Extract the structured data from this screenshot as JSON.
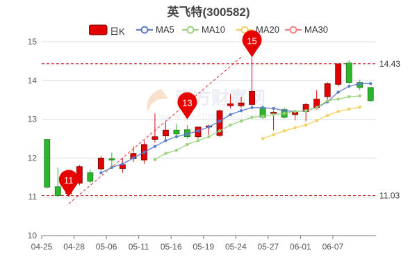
{
  "chart_data": {
    "type": "candlestick",
    "title": "英飞特(300582)",
    "legend": [
      {
        "name": "日K",
        "color": "#e00000"
      },
      {
        "name": "MA5",
        "color": "#5b7cc8"
      },
      {
        "name": "MA10",
        "color": "#9bd27c"
      },
      {
        "name": "MA20",
        "color": "#f5cf5c"
      },
      {
        "name": "MA30",
        "color": "#f08080"
      }
    ],
    "colors": {
      "up": "#e00000",
      "down": "#2db52d",
      "grid": "#d9dfe8",
      "axis": "#777777"
    },
    "yaxis": {
      "min": 10,
      "max": 15,
      "ticks": [
        10,
        11,
        12,
        13,
        14,
        15
      ]
    },
    "xaxis": {
      "tick_labels": [
        "04-25",
        "04-28",
        "05-06",
        "05-11",
        "05-16",
        "05-19",
        "05-24",
        "05-27",
        "06-01",
        "06-07"
      ],
      "tick_index": [
        0,
        3,
        6,
        9,
        12,
        15,
        18,
        21,
        24,
        27
      ]
    },
    "candles": [
      {
        "o": 12.48,
        "c": 11.25,
        "h": 12.48,
        "l": 11.22
      },
      {
        "o": 11.26,
        "c": 11.03,
        "h": 11.76,
        "l": 11.0
      },
      {
        "o": 11.08,
        "c": 11.36,
        "h": 11.42,
        "l": 11.03
      },
      {
        "o": 11.35,
        "c": 11.78,
        "h": 11.82,
        "l": 11.3
      },
      {
        "o": 11.62,
        "c": 11.4,
        "h": 11.7,
        "l": 11.35
      },
      {
        "o": 11.72,
        "c": 12.0,
        "h": 12.05,
        "l": 11.68
      },
      {
        "o": 11.98,
        "c": 11.95,
        "h": 12.14,
        "l": 11.72
      },
      {
        "o": 11.73,
        "c": 11.83,
        "h": 12.0,
        "l": 11.62
      },
      {
        "o": 11.98,
        "c": 12.12,
        "h": 12.3,
        "l": 11.9
      },
      {
        "o": 11.95,
        "c": 12.35,
        "h": 12.45,
        "l": 11.85
      },
      {
        "o": 12.48,
        "c": 12.55,
        "h": 13.15,
        "l": 12.4
      },
      {
        "o": 12.57,
        "c": 12.72,
        "h": 12.92,
        "l": 12.48
      },
      {
        "o": 12.72,
        "c": 12.62,
        "h": 12.88,
        "l": 12.55
      },
      {
        "o": 12.73,
        "c": 12.55,
        "h": 12.85,
        "l": 12.5
      },
      {
        "o": 12.55,
        "c": 12.8,
        "h": 12.8,
        "l": 12.5
      },
      {
        "o": 12.8,
        "c": 12.83,
        "h": 12.86,
        "l": 12.6
      },
      {
        "o": 12.58,
        "c": 13.22,
        "h": 13.25,
        "l": 12.55
      },
      {
        "o": 13.35,
        "c": 13.4,
        "h": 13.65,
        "l": 13.28
      },
      {
        "o": 13.35,
        "c": 13.42,
        "h": 13.58,
        "l": 13.3
      },
      {
        "o": 13.38,
        "c": 13.72,
        "h": 14.6,
        "l": 13.35
      },
      {
        "o": 13.3,
        "c": 13.05,
        "h": 13.35,
        "l": 13.0
      },
      {
        "o": 13.15,
        "c": 13.18,
        "h": 13.22,
        "l": 12.72
      },
      {
        "o": 13.25,
        "c": 13.05,
        "h": 13.3,
        "l": 13.02
      },
      {
        "o": 13.12,
        "c": 13.18,
        "h": 13.22,
        "l": 12.98
      },
      {
        "o": 13.2,
        "c": 13.38,
        "h": 13.42,
        "l": 12.95
      },
      {
        "o": 13.3,
        "c": 13.52,
        "h": 13.75,
        "l": 13.25
      },
      {
        "o": 13.58,
        "c": 13.92,
        "h": 13.95,
        "l": 13.5
      },
      {
        "o": 13.9,
        "c": 14.43,
        "h": 14.43,
        "l": 13.85
      },
      {
        "o": 14.45,
        "c": 13.95,
        "h": 14.52,
        "l": 13.9
      },
      {
        "o": 13.95,
        "c": 13.82,
        "h": 14.02,
        "l": 13.75
      },
      {
        "o": 13.82,
        "c": 13.48,
        "h": 13.82,
        "l": 13.45
      }
    ],
    "ma": [
      {
        "name": "MA5",
        "color": "#5b7cc8",
        "start": 5,
        "values": [
          11.62,
          11.76,
          11.85,
          12.0,
          12.15,
          12.3,
          12.45,
          12.55,
          12.62,
          12.7,
          12.8,
          12.95,
          13.12,
          13.22,
          13.3,
          13.3,
          13.28,
          13.22,
          13.2,
          13.22,
          13.3,
          13.45,
          13.7,
          13.85,
          13.92,
          13.92
        ]
      },
      {
        "name": "MA10",
        "color": "#9bd27c",
        "start": 10,
        "values": [
          11.96,
          12.12,
          12.2,
          12.35,
          12.45,
          12.55,
          12.7,
          12.85,
          12.95,
          13.05,
          13.08,
          13.12,
          13.15,
          13.2,
          13.22,
          13.3,
          13.48,
          13.52,
          13.58,
          13.6
        ]
      },
      {
        "name": "MA20",
        "color": "#f5cf5c",
        "start": 20,
        "values": [
          12.5,
          12.6,
          12.7,
          12.78,
          12.85,
          12.97,
          13.1,
          13.2,
          13.26,
          13.31
        ]
      }
    ],
    "markers": [
      {
        "label": "11",
        "index": 2,
        "value": 11.0
      },
      {
        "label": "13",
        "index": 13,
        "value": 13.0
      },
      {
        "label": "15",
        "index": 19,
        "value": 14.6
      }
    ],
    "reference_lines": [
      {
        "value": 14.43,
        "label": "14.43"
      },
      {
        "value": 11.03,
        "label": "11.03"
      }
    ],
    "trend_line": {
      "from": {
        "index": 2,
        "value": 10.82
      },
      "to": {
        "index": 18,
        "value": 14.6
      }
    },
    "watermark": {
      "text": "南方财富网",
      "sub": "www.southmoney.com"
    }
  }
}
